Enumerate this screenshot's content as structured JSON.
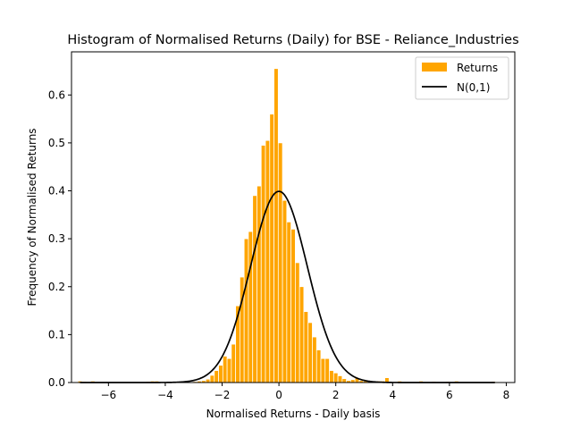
{
  "chart_data": {
    "type": "bar",
    "title": "Histogram of Normalised Returns (Daily) for BSE - Reliance_Industries",
    "xlabel": "Normalised Returns - Daily basis",
    "ylabel": "Frequency of Normalised Returns",
    "xlim": [
      -7.3,
      8.3
    ],
    "ylim": [
      0,
      0.69
    ],
    "xticks": [
      -6,
      -4,
      -2,
      0,
      2,
      4,
      6,
      8
    ],
    "xtick_labels": [
      "−6",
      "−4",
      "−2",
      "0",
      "2",
      "4",
      "6",
      "8"
    ],
    "yticks": [
      0.0,
      0.1,
      0.2,
      0.3,
      0.4,
      0.5,
      0.6
    ],
    "ytick_labels": [
      "0.0",
      "0.1",
      "0.2",
      "0.3",
      "0.4",
      "0.5",
      "0.6"
    ],
    "grid": false,
    "legend_position": "top-right",
    "bin_width": 0.147,
    "series": [
      {
        "name": "Returns",
        "kind": "histogram",
        "color": "#ffa500",
        "bin_centers": [
          -7.0,
          -6.85,
          -6.55,
          -4.6,
          -4.45,
          -4.3,
          -2.95,
          -2.8,
          -2.65,
          -2.5,
          -2.35,
          -2.2,
          -2.05,
          -1.9,
          -1.75,
          -1.6,
          -1.45,
          -1.3,
          -1.15,
          -1.0,
          -0.85,
          -0.7,
          -0.55,
          -0.4,
          -0.25,
          -0.1,
          0.05,
          0.2,
          0.35,
          0.5,
          0.65,
          0.8,
          0.95,
          1.1,
          1.25,
          1.4,
          1.55,
          1.7,
          1.85,
          2.0,
          2.15,
          2.3,
          2.45,
          2.6,
          2.75,
          2.9,
          3.05,
          3.2,
          3.35,
          3.5,
          3.65,
          3.8,
          4.25,
          5.0,
          5.45,
          5.95,
          6.25,
          7.55
        ],
        "values": [
          0.003,
          0.002,
          0.003,
          0.002,
          0.003,
          0.003,
          0.002,
          0.003,
          0.004,
          0.007,
          0.015,
          0.025,
          0.036,
          0.055,
          0.05,
          0.08,
          0.16,
          0.22,
          0.3,
          0.315,
          0.39,
          0.41,
          0.495,
          0.505,
          0.56,
          0.655,
          0.5,
          0.38,
          0.335,
          0.32,
          0.25,
          0.2,
          0.148,
          0.125,
          0.095,
          0.068,
          0.05,
          0.05,
          0.025,
          0.02,
          0.014,
          0.008,
          0.004,
          0.006,
          0.01,
          0.004,
          0.003,
          0.003,
          0.002,
          0.003,
          0.003,
          0.01,
          0.003,
          0.003,
          0.002,
          0.002,
          0.003,
          0.002
        ]
      },
      {
        "name": "N(0,1)",
        "kind": "line",
        "color": "#000000",
        "function": "standard normal pdf",
        "x_range": [
          -7.0,
          7.6
        ]
      }
    ]
  }
}
